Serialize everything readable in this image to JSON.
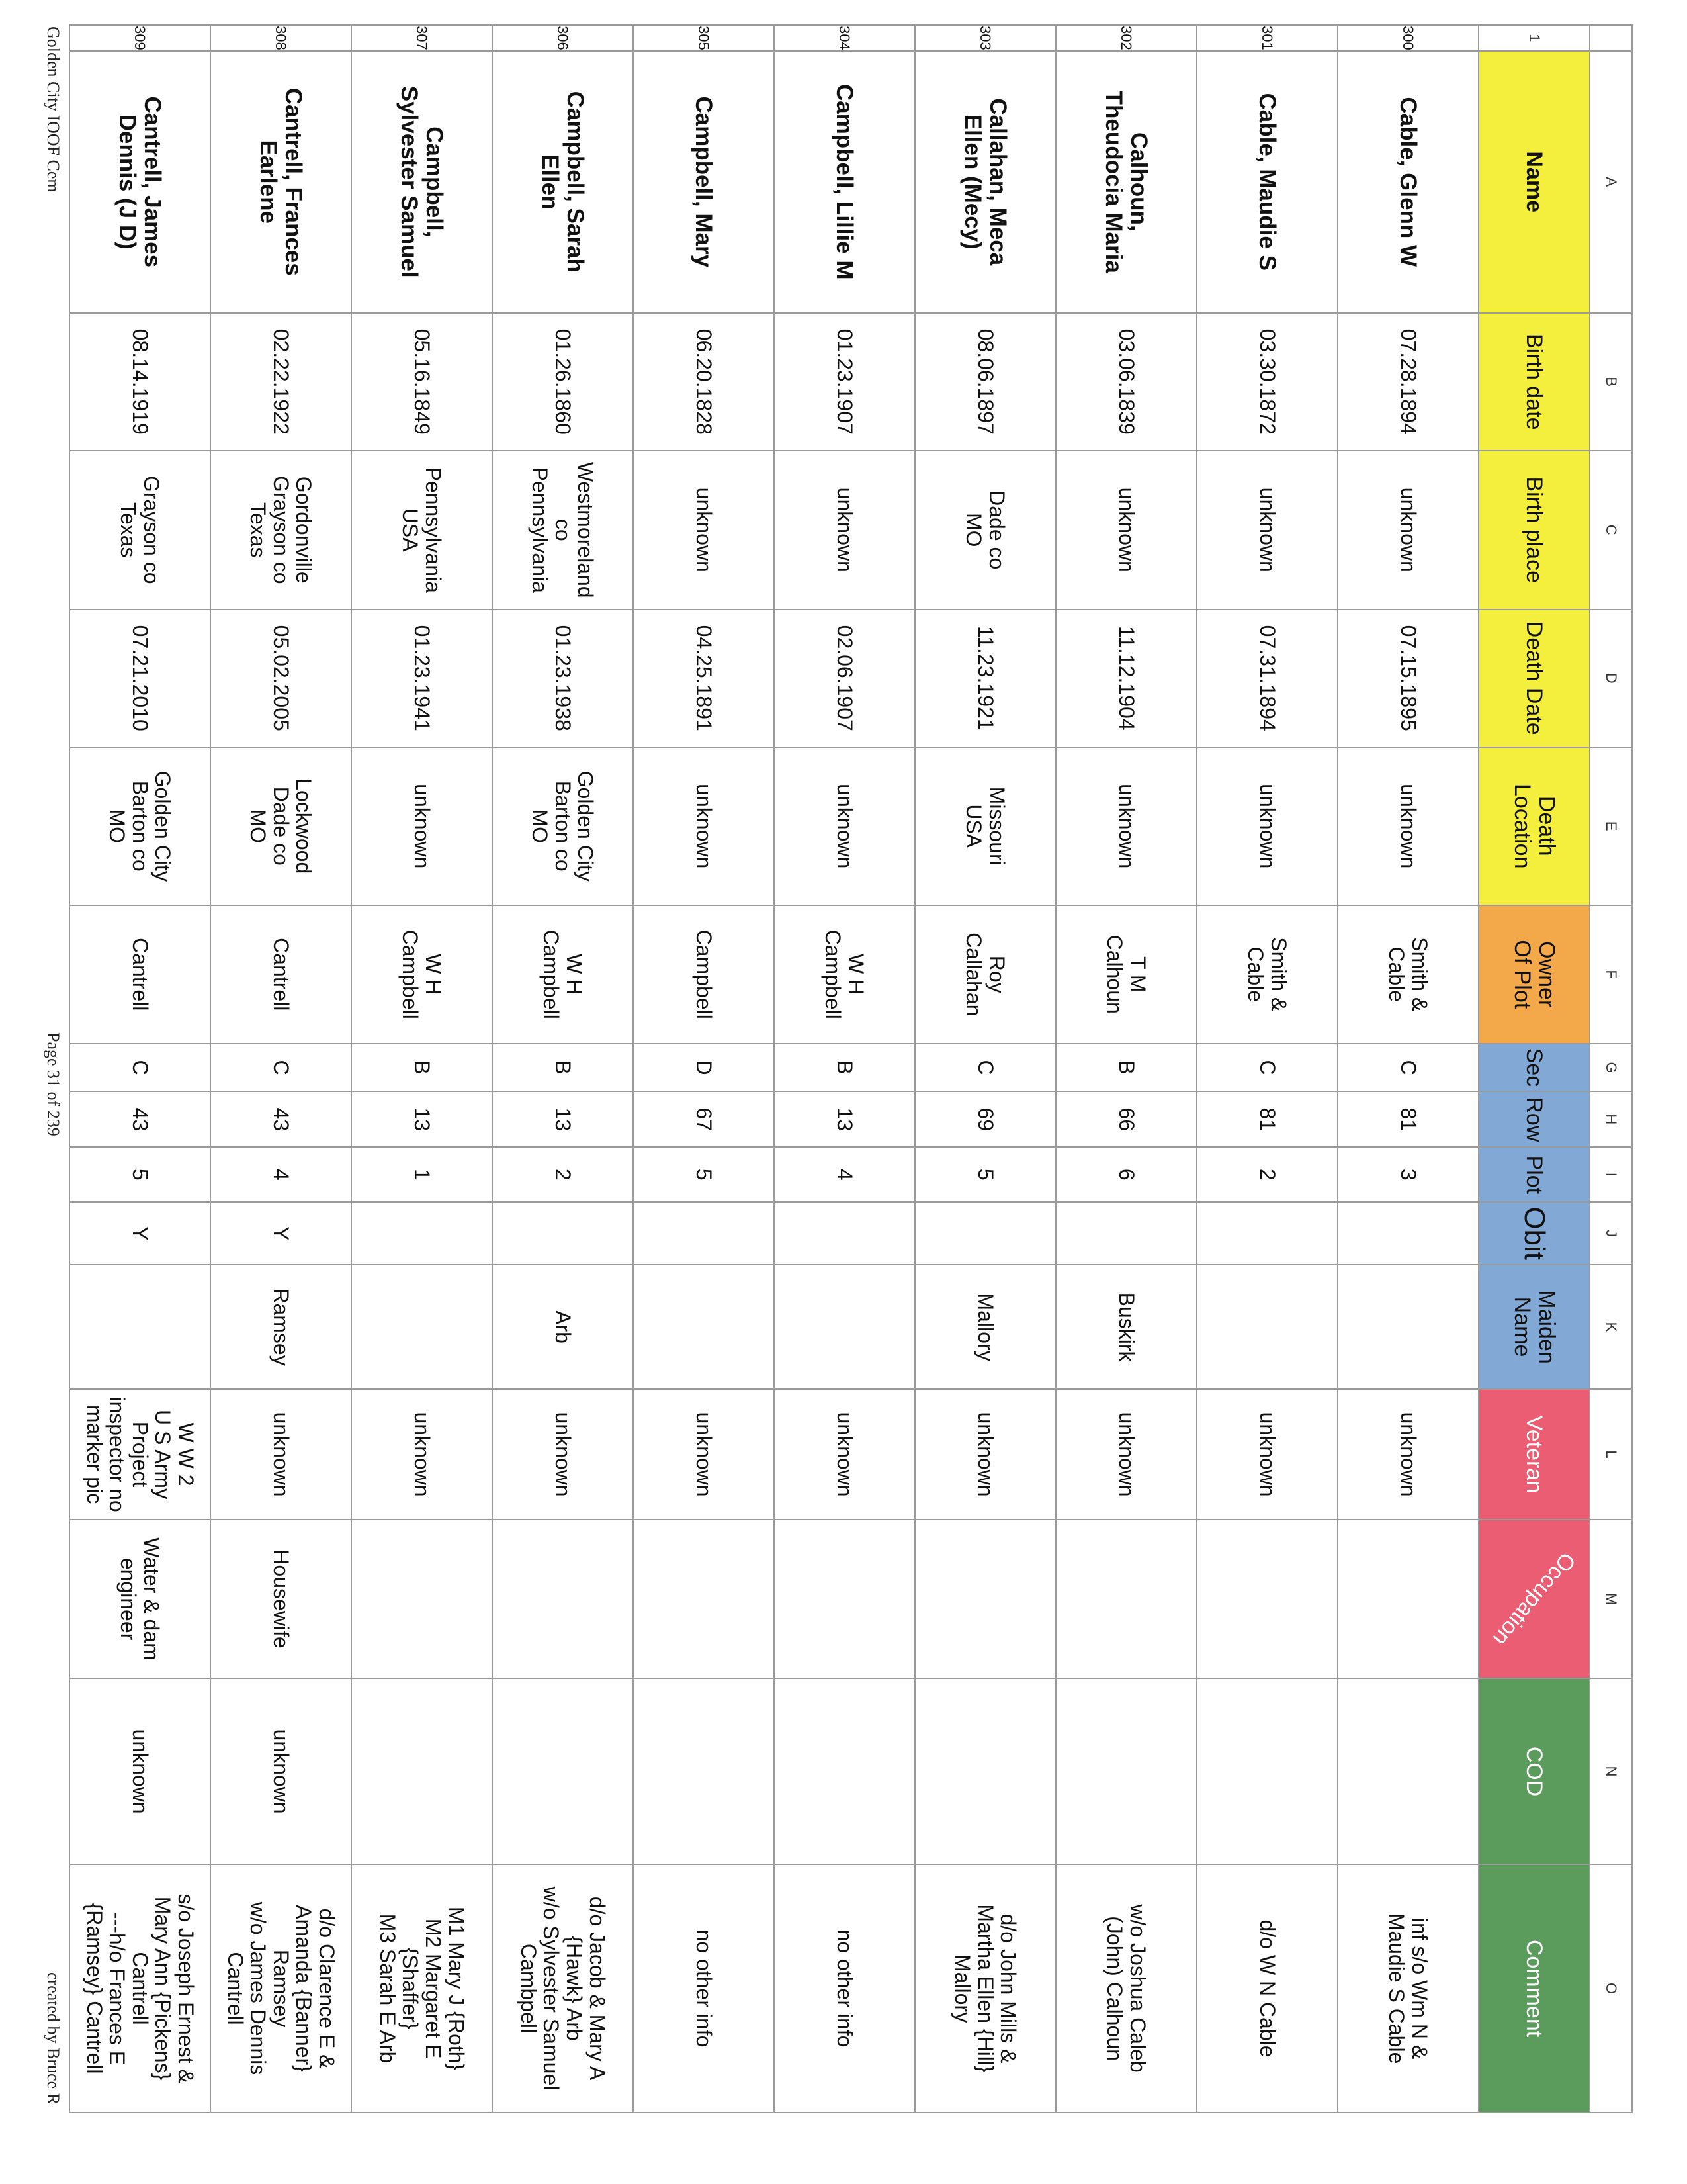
{
  "colors": {
    "yellow": "#f3ef3c",
    "orange": "#f3a84a",
    "blue": "#82a9d6",
    "pink": "#ea5d73",
    "green": "#5b9c5d"
  },
  "column_letters": [
    "",
    "A",
    "B",
    "C",
    "D",
    "E",
    "F",
    "G",
    "H",
    "I",
    "J",
    "K",
    "L",
    "M",
    "N",
    "O"
  ],
  "header_row_number": "1",
  "headers": [
    {
      "label": "Name",
      "color": "yellow",
      "bold": true
    },
    {
      "label": "Birth date",
      "color": "yellow"
    },
    {
      "label": "Birth place",
      "color": "yellow"
    },
    {
      "label": "Death Date",
      "color": "yellow"
    },
    {
      "label": "Death\nLocation",
      "color": "yellow"
    },
    {
      "label": "Owner\nOf Plot",
      "color": "orange"
    },
    {
      "label": "Sec",
      "color": "blue"
    },
    {
      "label": "Row",
      "color": "blue"
    },
    {
      "label": "Plot",
      "color": "blue"
    },
    {
      "label": "Obit",
      "color": "blue"
    },
    {
      "label": "Maiden\nName",
      "color": "blue"
    },
    {
      "label": "Veteran",
      "color": "pink"
    },
    {
      "label": "Occupation",
      "color": "pink"
    },
    {
      "label": "COD",
      "color": "green"
    },
    {
      "label": "Comment",
      "color": "green"
    }
  ],
  "rows": [
    {
      "num": "300",
      "cells": [
        "Cable, Glenn W",
        "07.28.1894",
        "unknown",
        "07.15.1895",
        "unknown",
        "Smith &\nCable",
        "C",
        "81",
        "3",
        "",
        "",
        "unknown",
        "",
        "",
        "inf s/o Wm N &\nMaudie S Cable"
      ]
    },
    {
      "num": "301",
      "cells": [
        "Cable, Maudie S",
        "03.30.1872",
        "unknown",
        "07.31.1894",
        "unknown",
        "Smith &\nCable",
        "C",
        "81",
        "2",
        "",
        "",
        "unknown",
        "",
        "",
        "d/o W N Cable"
      ]
    },
    {
      "num": "302",
      "cells": [
        "Calhoun,\nTheudocia Maria",
        "03.06.1839",
        "unknown",
        "11.12.1904",
        "unknown",
        "T M\nCalhoun",
        "B",
        "66",
        "6",
        "",
        "Buskirk",
        "unknown",
        "",
        "",
        "w/o Joshua Caleb\n(John) Calhoun"
      ]
    },
    {
      "num": "303",
      "cells": [
        "Callahan, Meca\nEllen (Mecy)",
        "08.06.1897",
        "Dade co\nMO",
        "11.23.1921",
        "Missouri\nUSA",
        "Roy\nCallahan",
        "C",
        "69",
        "5",
        "",
        "Mallory",
        "unknown",
        "",
        "",
        "d/o John Mills &\nMartha Ellen {Hill}\nMallory"
      ]
    },
    {
      "num": "304",
      "cells": [
        "Campbell, Lillie M",
        "01.23.1907",
        "unknown",
        "02.06.1907",
        "unknown",
        "W H\nCampbell",
        "B",
        "13",
        "4",
        "",
        "",
        "unknown",
        "",
        "",
        "no other info"
      ]
    },
    {
      "num": "305",
      "cells": [
        "Campbell, Mary",
        "06.20.1828",
        "unknown",
        "04.25.1891",
        "unknown",
        "Campbell",
        "D",
        "67",
        "5",
        "",
        "",
        "unknown",
        "",
        "",
        "no other info"
      ]
    },
    {
      "num": "306",
      "cells": [
        "Campbell, Sarah\nEllen",
        "01.26.1860",
        "Westmoreland\nco\nPennsylvania",
        "01.23.1938",
        "Golden City\nBarton co\nMO",
        "W H\nCampbell",
        "B",
        "13",
        "2",
        "",
        "Arb",
        "unknown",
        "",
        "",
        "d/o Jacob & Mary A\n{Hawk} Arb\nw/o Sylvester Samuel\nCambpell"
      ]
    },
    {
      "num": "307",
      "cells": [
        "Campbell,\nSylvester Samuel",
        "05.16.1849",
        "Pennsylvania\nUSA",
        "01.23.1941",
        "unknown",
        "W H\nCampbell",
        "B",
        "13",
        "1",
        "",
        "",
        "unknown",
        "",
        "",
        "M1 Mary J {Roth}\nM2 Margaret E\n{Shaffer}\nM3 Sarah E Arb"
      ]
    },
    {
      "num": "308",
      "cells": [
        "Cantrell, Frances\nEarlene",
        "02.22.1922",
        "Gordonville\nGrayson co\nTexas",
        "05.02.2005",
        "Lockwood\nDade co\nMO",
        "Cantrell",
        "C",
        "43",
        "4",
        "Y",
        "Ramsey",
        "unknown",
        "Housewife",
        "unknown",
        "d/o Clarence E &\nAmanda {Banner}\nRamsey\nw/o James Dennis\nCantrell"
      ]
    },
    {
      "num": "309",
      "cells": [
        "Cantrell, James\nDennis (J D)",
        "08.14.1919",
        "Grayson co\nTexas",
        "07.21.2010",
        "Golden City\nBarton co\nMO",
        "Cantrell",
        "C",
        "43",
        "5",
        "Y",
        "",
        "W W 2\nU S Army\nProject\ninspector no\nmarker pic",
        "Water & dam\nengineer",
        "unknown",
        "s/o Joseph Ernest &\nMary Ann {Pickens}\nCantrell\n---h/o Frances E\n{Ramsey} Cantrell"
      ]
    }
  ],
  "footer": {
    "left": "Golden City IOOF Cem",
    "center": "Page 31 of 239",
    "right": "created by Bruce R"
  }
}
